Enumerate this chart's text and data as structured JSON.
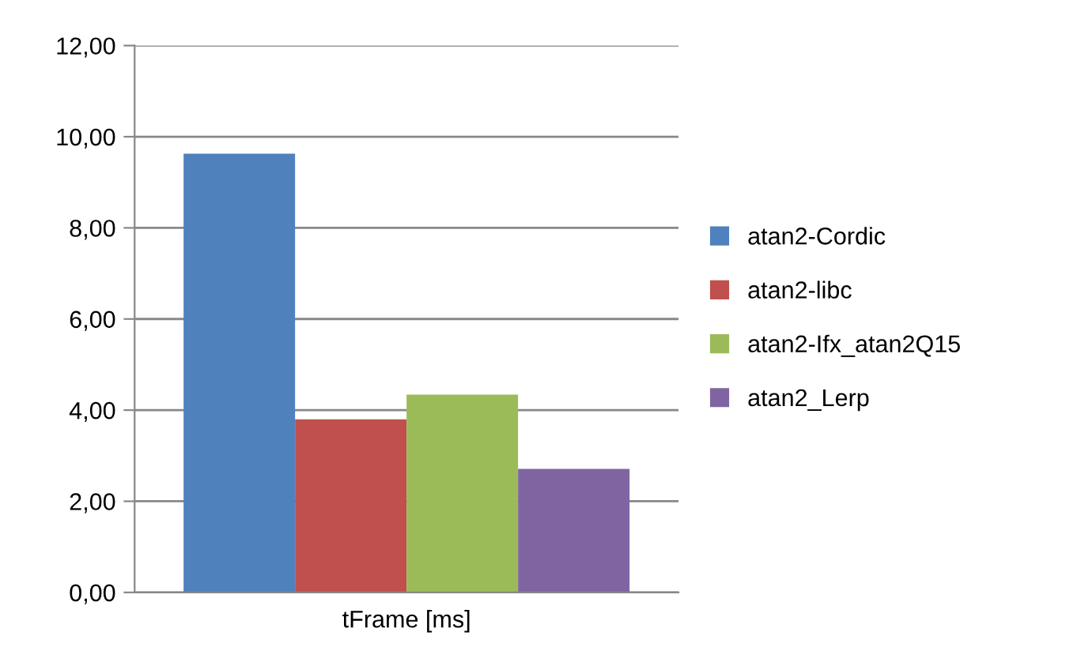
{
  "chart_data": {
    "type": "bar",
    "categories": [
      "tFrame [ms]"
    ],
    "series": [
      {
        "name": "atan2-Cordic",
        "color": "#4f81bd",
        "values": [
          9.63
        ]
      },
      {
        "name": "atan2-libc",
        "color": "#c0504d",
        "values": [
          3.8
        ]
      },
      {
        "name": "atan2-Ifx_atan2Q15",
        "color": "#9bbb59",
        "values": [
          4.34
        ]
      },
      {
        "name": "atan2_Lerp",
        "color": "#8064a2",
        "values": [
          2.71
        ]
      }
    ],
    "ylim": [
      0,
      12
    ],
    "yticks": [
      {
        "value": 0,
        "label": "0,00"
      },
      {
        "value": 2,
        "label": "2,00"
      },
      {
        "value": 4,
        "label": "4,00"
      },
      {
        "value": 6,
        "label": "6,00"
      },
      {
        "value": 8,
        "label": "8,00"
      },
      {
        "value": 10,
        "label": "10,00"
      },
      {
        "value": 12,
        "label": "12,00"
      }
    ],
    "grid": "y",
    "legend": "right"
  }
}
